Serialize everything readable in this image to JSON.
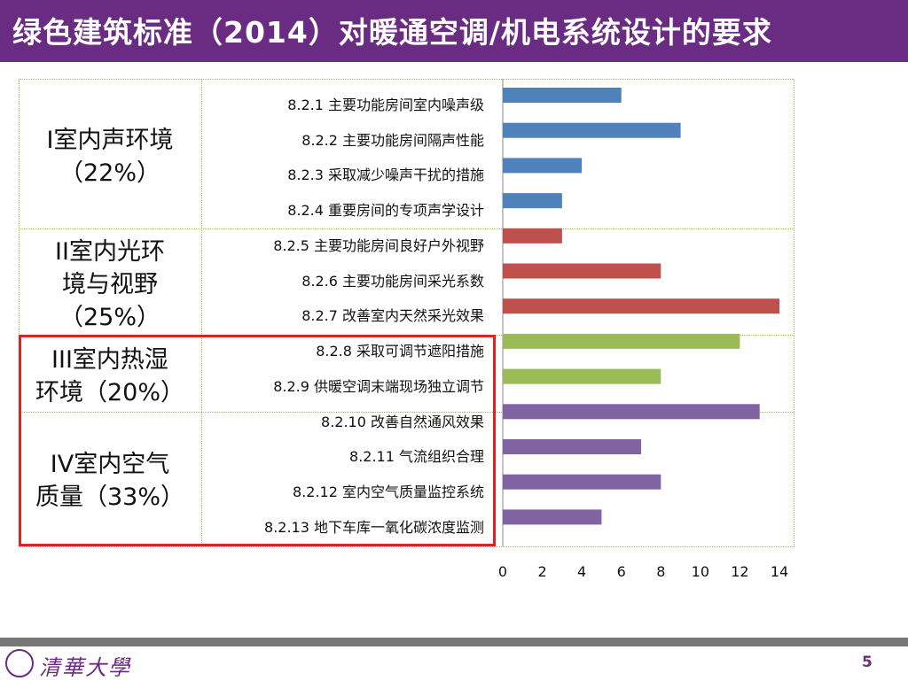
{
  "header": {
    "title": "绿色建筑标准（2014）对暖通空调/机电系统设计的要求"
  },
  "categories": [
    {
      "name": "I室内声环境",
      "percent": "（22%）"
    },
    {
      "name": "II室内光环境与视野",
      "percent": "（25%）"
    },
    {
      "name": "III室内热湿环境",
      "percent": "（20%）"
    },
    {
      "name": "IV室内空气质量",
      "percent": "（33%）"
    }
  ],
  "category_display": [
    [
      "I室内声环境",
      "（22%）"
    ],
    [
      "II室内光环",
      "境与视野",
      "（25%）"
    ],
    [
      "III室内热湿",
      "环境（20%）"
    ],
    [
      "IV室内空气",
      "质量（33%）"
    ]
  ],
  "chart_data": {
    "type": "bar",
    "orientation": "horizontal",
    "categories": [
      "8.2.1 主要功能房间室内噪声级",
      "8.2.2 主要功能房间隔声性能",
      "8.2.3 采取减少噪声干扰的措施",
      "8.2.4 重要房间的专项声学设计",
      "8.2.5 主要功能房间良好户外视野",
      "8.2.6 主要功能房间采光系数",
      "8.2.7 改善室内天然采光效果",
      "8.2.8 采取可调节遮阳措施",
      "8.2.9 供暖空调末端现场独立调节",
      "8.2.10 改善自然通风效果",
      "8.2.11 气流组织合理",
      "8.2.12 室内空气质量监控系统",
      "8.2.13 地下车库一氧化碳浓度监测"
    ],
    "values": [
      6,
      9,
      4,
      3,
      3,
      8,
      14,
      12,
      8,
      13,
      7,
      8,
      5
    ],
    "colors": [
      "#4f81bd",
      "#4f81bd",
      "#4f81bd",
      "#4f81bd",
      "#c0504d",
      "#c0504d",
      "#c0504d",
      "#9bbb59",
      "#9bbb59",
      "#8064a2",
      "#8064a2",
      "#8064a2",
      "#8064a2"
    ],
    "xlim": [
      0,
      14
    ],
    "xticks": [
      0,
      2,
      4,
      6,
      8,
      10,
      12,
      14
    ],
    "xlabel": "",
    "ylabel": "",
    "title": "",
    "grid": false
  },
  "footer": {
    "logo_text": "清華大學",
    "page_number": "5"
  },
  "colors": {
    "title_bar": "#6a2b82",
    "highlight_border": "#d92424"
  }
}
